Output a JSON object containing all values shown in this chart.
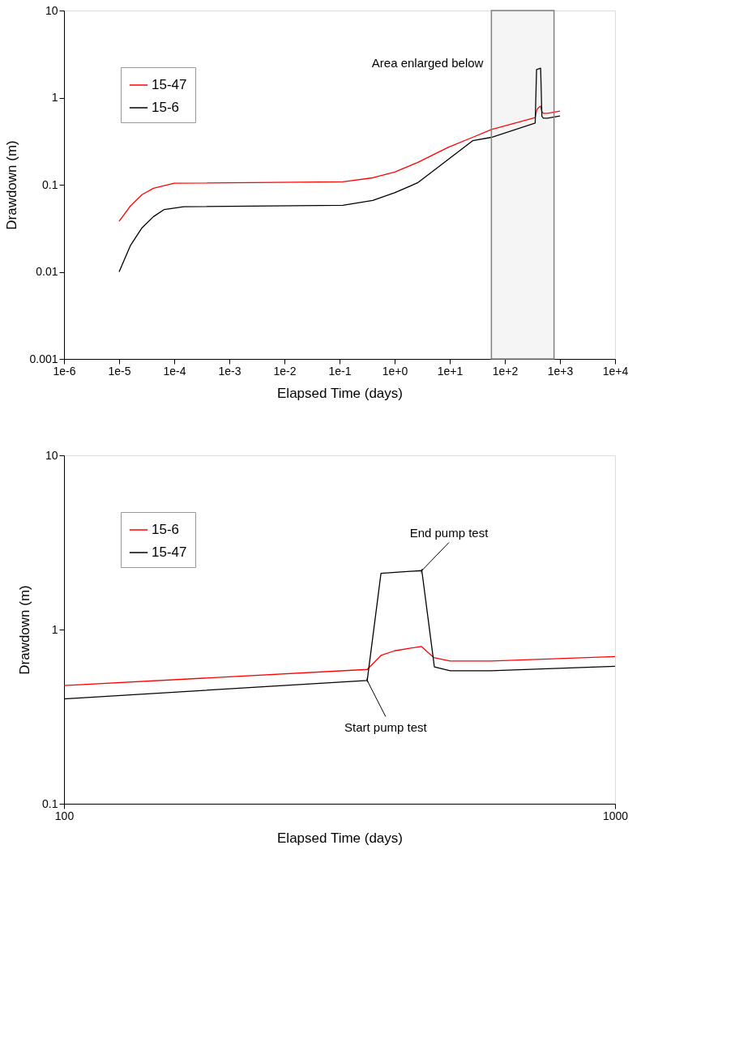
{
  "chart_data": [
    {
      "type": "line",
      "xlabel": "Elapsed Time (days)",
      "ylabel": "Drawdown (m)",
      "log": "xy",
      "legend": "top left",
      "grid": false,
      "xlim": [
        1e-06,
        10000.0
      ],
      "ylim": [
        0.001,
        10
      ],
      "xticks": [
        {
          "value": 1e-06,
          "label": "1e-6"
        },
        {
          "value": 1e-05,
          "label": "1e-5"
        },
        {
          "value": 0.0001,
          "label": "1e-4"
        },
        {
          "value": 0.001,
          "label": "1e-3"
        },
        {
          "value": 0.01,
          "label": "1e-2"
        },
        {
          "value": 0.1,
          "label": "1e-1"
        },
        {
          "value": 1,
          "label": "1e+0"
        },
        {
          "value": 10,
          "label": "1e+1"
        },
        {
          "value": 100,
          "label": "1e+2"
        },
        {
          "value": 1000,
          "label": "1e+3"
        },
        {
          "value": 10000,
          "label": "1e+4"
        }
      ],
      "yticks": [
        0.001,
        0.01,
        0.1,
        1,
        10
      ],
      "bands": [
        {
          "axis": "x",
          "from": 57,
          "to": 780,
          "label": "Area enlarged below",
          "color": "#808080"
        }
      ],
      "series": [
        {
          "name": "15-47",
          "color": "#ff0000",
          "x": [
            1e-05,
            1.6e-05,
            2.6e-05,
            4.2e-05,
            0.0001,
            0.115,
            0.4,
            1,
            2.6,
            9.5,
            26,
            57,
            355,
            376,
            398,
            445,
            469,
            502,
            595,
            1000
          ],
          "values": [
            0.038,
            0.057,
            0.077,
            0.091,
            0.104,
            0.108,
            0.12,
            0.14,
            0.18,
            0.27,
            0.35,
            0.43,
            0.59,
            0.71,
            0.755,
            0.8,
            0.69,
            0.66,
            0.66,
            0.7
          ]
        },
        {
          "name": "15-6",
          "color": "#000000",
          "x": [
            1e-05,
            1.6e-05,
            2.6e-05,
            4.2e-05,
            6.6e-05,
            0.00015,
            0.115,
            0.4,
            1,
            2.6,
            9.5,
            26,
            57,
            355,
            376,
            446,
            470,
            502,
            595,
            1000
          ],
          "values": [
            0.01,
            0.02,
            0.032,
            0.043,
            0.052,
            0.056,
            0.058,
            0.066,
            0.081,
            0.105,
            0.196,
            0.32,
            0.35,
            0.51,
            2.1,
            2.18,
            0.61,
            0.58,
            0.58,
            0.615
          ]
        }
      ]
    },
    {
      "type": "line",
      "xlabel": "Elapsed Time (days)",
      "ylabel": "Drawdown (m)",
      "log": "xy",
      "legend": "top left",
      "grid": false,
      "xlim": [
        100,
        1000
      ],
      "ylim": [
        0.1,
        10
      ],
      "xticks": [
        100,
        1000
      ],
      "yticks": [
        0.1,
        1,
        10
      ],
      "annotations": [
        {
          "text": "End pump test",
          "x": 446,
          "y": 2.18
        },
        {
          "text": "Start pump test",
          "x": 355,
          "y": 0.51
        }
      ],
      "series": [
        {
          "name": "15-6",
          "color": "#ff0000",
          "x": [
            100,
            355,
            376,
            398,
            445,
            469,
            502,
            595,
            1000
          ],
          "values": [
            0.477,
            0.59,
            0.71,
            0.755,
            0.8,
            0.69,
            0.66,
            0.66,
            0.7
          ]
        },
        {
          "name": "15-47",
          "color": "#000000",
          "x": [
            100,
            355,
            376,
            446,
            470,
            502,
            595,
            1000
          ],
          "values": [
            0.4,
            0.51,
            2.1,
            2.18,
            0.61,
            0.58,
            0.58,
            0.615
          ]
        }
      ]
    }
  ]
}
